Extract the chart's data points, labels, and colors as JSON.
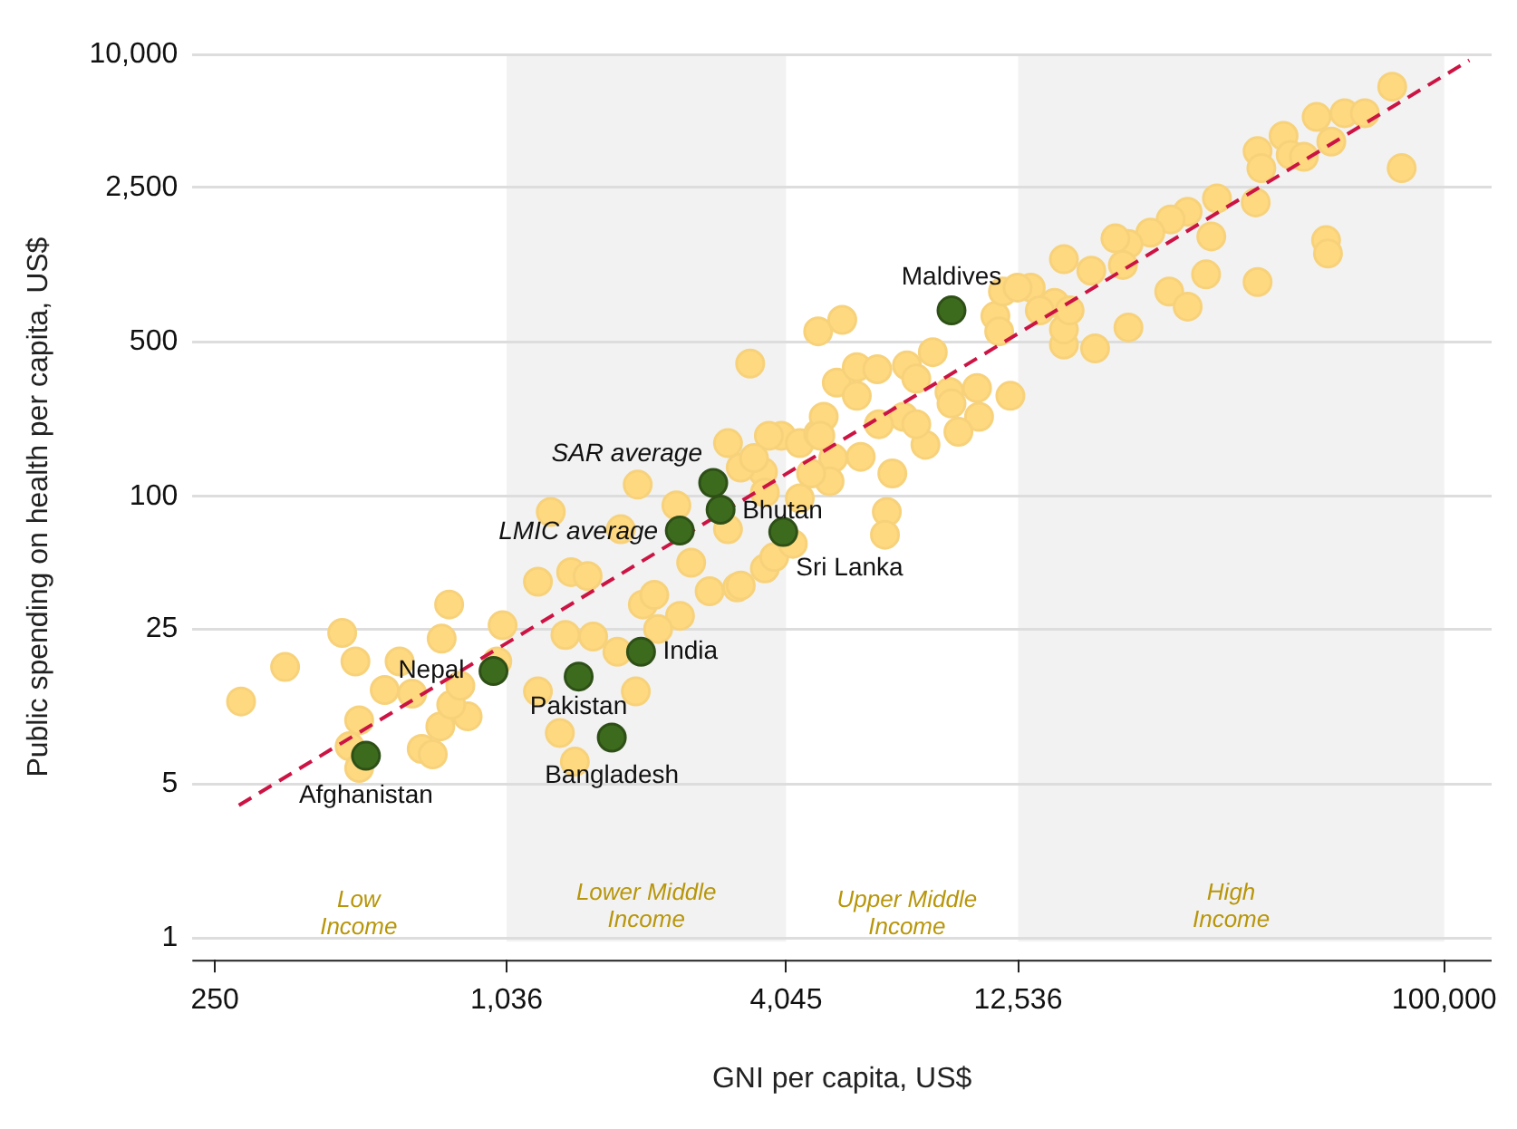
{
  "chart_data": {
    "type": "scatter",
    "xlabel": "GNI per capita, US$",
    "ylabel": "Public spending on health per capita, US$",
    "log": "xy",
    "grid": "y",
    "marker": "circle",
    "line_style": "dashed",
    "xlim": [
      224,
      126000
    ],
    "ylim": [
      0.8,
      10000
    ],
    "xticks": [
      250,
      {
        "value": 1036,
        "label": "1,036"
      },
      {
        "value": 4045,
        "label": "4,045"
      },
      {
        "value": 12536,
        "label": "12,536"
      },
      {
        "value": 100000,
        "label": "100,000"
      }
    ],
    "yticks": [
      1,
      5,
      25,
      100,
      500,
      {
        "value": 2500,
        "label": "2,500"
      },
      {
        "value": 10000,
        "label": "10,000"
      }
    ],
    "bands": [
      {
        "axis": "x",
        "from": 1036,
        "to": 4045,
        "label": "Lower Middle Income",
        "color": "#f2f2f2"
      },
      {
        "axis": "x",
        "from": 12536,
        "to": 100000,
        "label": "High Income",
        "color": "#f2f2f2"
      }
    ],
    "series": [
      {
        "color": "#ffd97f",
        "x": [
          284,
          352,
          465,
          496,
          783,
          755,
          615,
          572,
          654,
          505,
          482,
          505,
          685,
          723,
          750,
          857,
          791,
          827,
          1016,
          990,
          1207,
          1419,
          1538,
          1380,
          1580,
          1207,
          1343,
          1445,
          3396,
          4730,
          5320,
          5180,
          5710,
          1963,
          1285,
          2370,
          1808,
          2547,
          2787,
          3186,
          3648,
          2013,
          2128,
          2412,
          2168,
          1778,
          1945,
          3048,
          3614,
          3954,
          4325,
          4730,
          5090,
          5000,
          4570,
          3648,
          3048,
          4325,
          3819,
          3243,
          5710,
          6310,
          7290,
          8270,
          7630,
          8970,
          10260,
          12070,
          9060,
          10360,
          9370,
          7980,
          6790,
          7170,
          7630,
          6360,
          4860,
          4780,
          5820,
          3720,
          3460,
          6610,
          6550,
          4180,
          3243,
          11220,
          11430,
          13330,
          15670,
          14970,
          15670,
          13930,
          77620,
          81280,
          61520,
          67920,
          53700,
          45710,
          40270,
          41020,
          47320,
          50470,
          57680,
          39900,
          33040,
          28640,
          26360,
          23880,
          21460,
          20140,
          32140,
          20890,
          17910,
          31330,
          56230,
          56750,
          40270,
          26180,
          28640,
          21460,
          18240,
          15670,
          16110,
          11640,
          12500
        ],
        "values": [
          11.8,
          16.9,
          24.1,
          17.9,
          32.4,
          22.7,
          17.9,
          13.3,
          12.8,
          9.7,
          7.4,
          5.9,
          7.2,
          6.8,
          9.1,
          10.1,
          11.4,
          13.9,
          26.1,
          17.9,
          41.1,
          45.4,
          43.6,
          23.6,
          23.2,
          13.1,
          8.5,
          6.3,
          399,
          558,
          629,
          327,
          285,
          113,
          85,
          91,
          71,
          50.1,
          37.2,
          38.7,
          47.2,
          32.4,
          35.8,
          28.8,
          25.1,
          19.8,
          13.1,
          174,
          129,
          188,
          174,
          192,
          149,
          117,
          127,
          104,
          71,
          98,
          53.1,
          135,
          384,
          376,
          391,
          449,
          341,
          297,
          309,
          285,
          263,
          229,
          196,
          171,
          127,
          229,
          212,
          212,
          229,
          188,
          151,
          188,
          149,
          85,
          67,
          61,
          39.5,
          654,
          558,
          880,
          1183,
          751,
          486,
          694,
          7140,
          3055,
          5420,
          5420,
          5210,
          4276,
          3648,
          3055,
          3508,
          3440,
          4030,
          2138,
          2228,
          1940,
          1791,
          1560,
          1386,
          1470,
          1500,
          1114,
          1050,
          1010,
          1442,
          1256,
          933,
          845,
          722,
          581,
          467,
          569,
          694,
          845,
          880
        ]
      },
      {
        "type": "line",
        "marker": "none",
        "color": "#cc1444",
        "x": [
          281,
          113000
        ],
        "values": [
          4.0,
          9400
        ]
      },
      {
        "color": "#3d6b1e",
        "x": [
          522,
          972,
          1472,
          1730,
          1995,
          2410,
          2836,
          2940,
          3990,
          9060
        ],
        "values": [
          6.7,
          16.2,
          15.3,
          8.1,
          19.8,
          70,
          115,
          87,
          69,
          694
        ]
      }
    ],
    "annotations": [
      {
        "text": "Afghanistan",
        "x": 522,
        "y": 6.7
      },
      {
        "text": "Nepal",
        "x": 972,
        "y": 16.2
      },
      {
        "text": "Pakistan",
        "x": 1472,
        "y": 15.3
      },
      {
        "text": "Bangladesh",
        "x": 1730,
        "y": 8.1
      },
      {
        "text": "India",
        "x": 1995,
        "y": 19.8
      },
      {
        "text": "LMIC average",
        "x": 2410,
        "y": 70
      },
      {
        "text": "SAR average",
        "x": 2836,
        "y": 115
      },
      {
        "text": "Bhutan",
        "x": 2940,
        "y": 87
      },
      {
        "text": "Sri Lanka",
        "x": 3990,
        "y": 69
      },
      {
        "text": "Maldives",
        "x": 9060,
        "y": 694
      },
      "Low Income",
      "Upper Middle Income"
    ]
  }
}
